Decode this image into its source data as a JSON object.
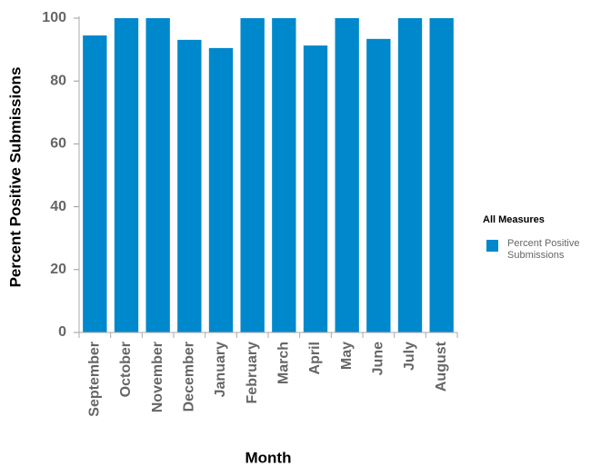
{
  "chart_data": {
    "type": "bar",
    "x_label": "Month",
    "y_label": "Percent Positive Submissions",
    "legend_title": "All Measures",
    "legend_position": "right",
    "categories": [
      "September",
      "October",
      "November",
      "December",
      "January",
      "February",
      "March",
      "April",
      "May",
      "June",
      "July",
      "August"
    ],
    "series": [
      {
        "name": "Percent Positive Submissions",
        "color": "#0088cc",
        "values": [
          94.5,
          100,
          100,
          93.1,
          90.5,
          100,
          100,
          91.3,
          100,
          93.4,
          100,
          100
        ]
      }
    ],
    "ylim": [
      0,
      100
    ],
    "yticks": [
      0,
      20,
      40,
      60,
      80,
      100
    ],
    "grid": false
  }
}
